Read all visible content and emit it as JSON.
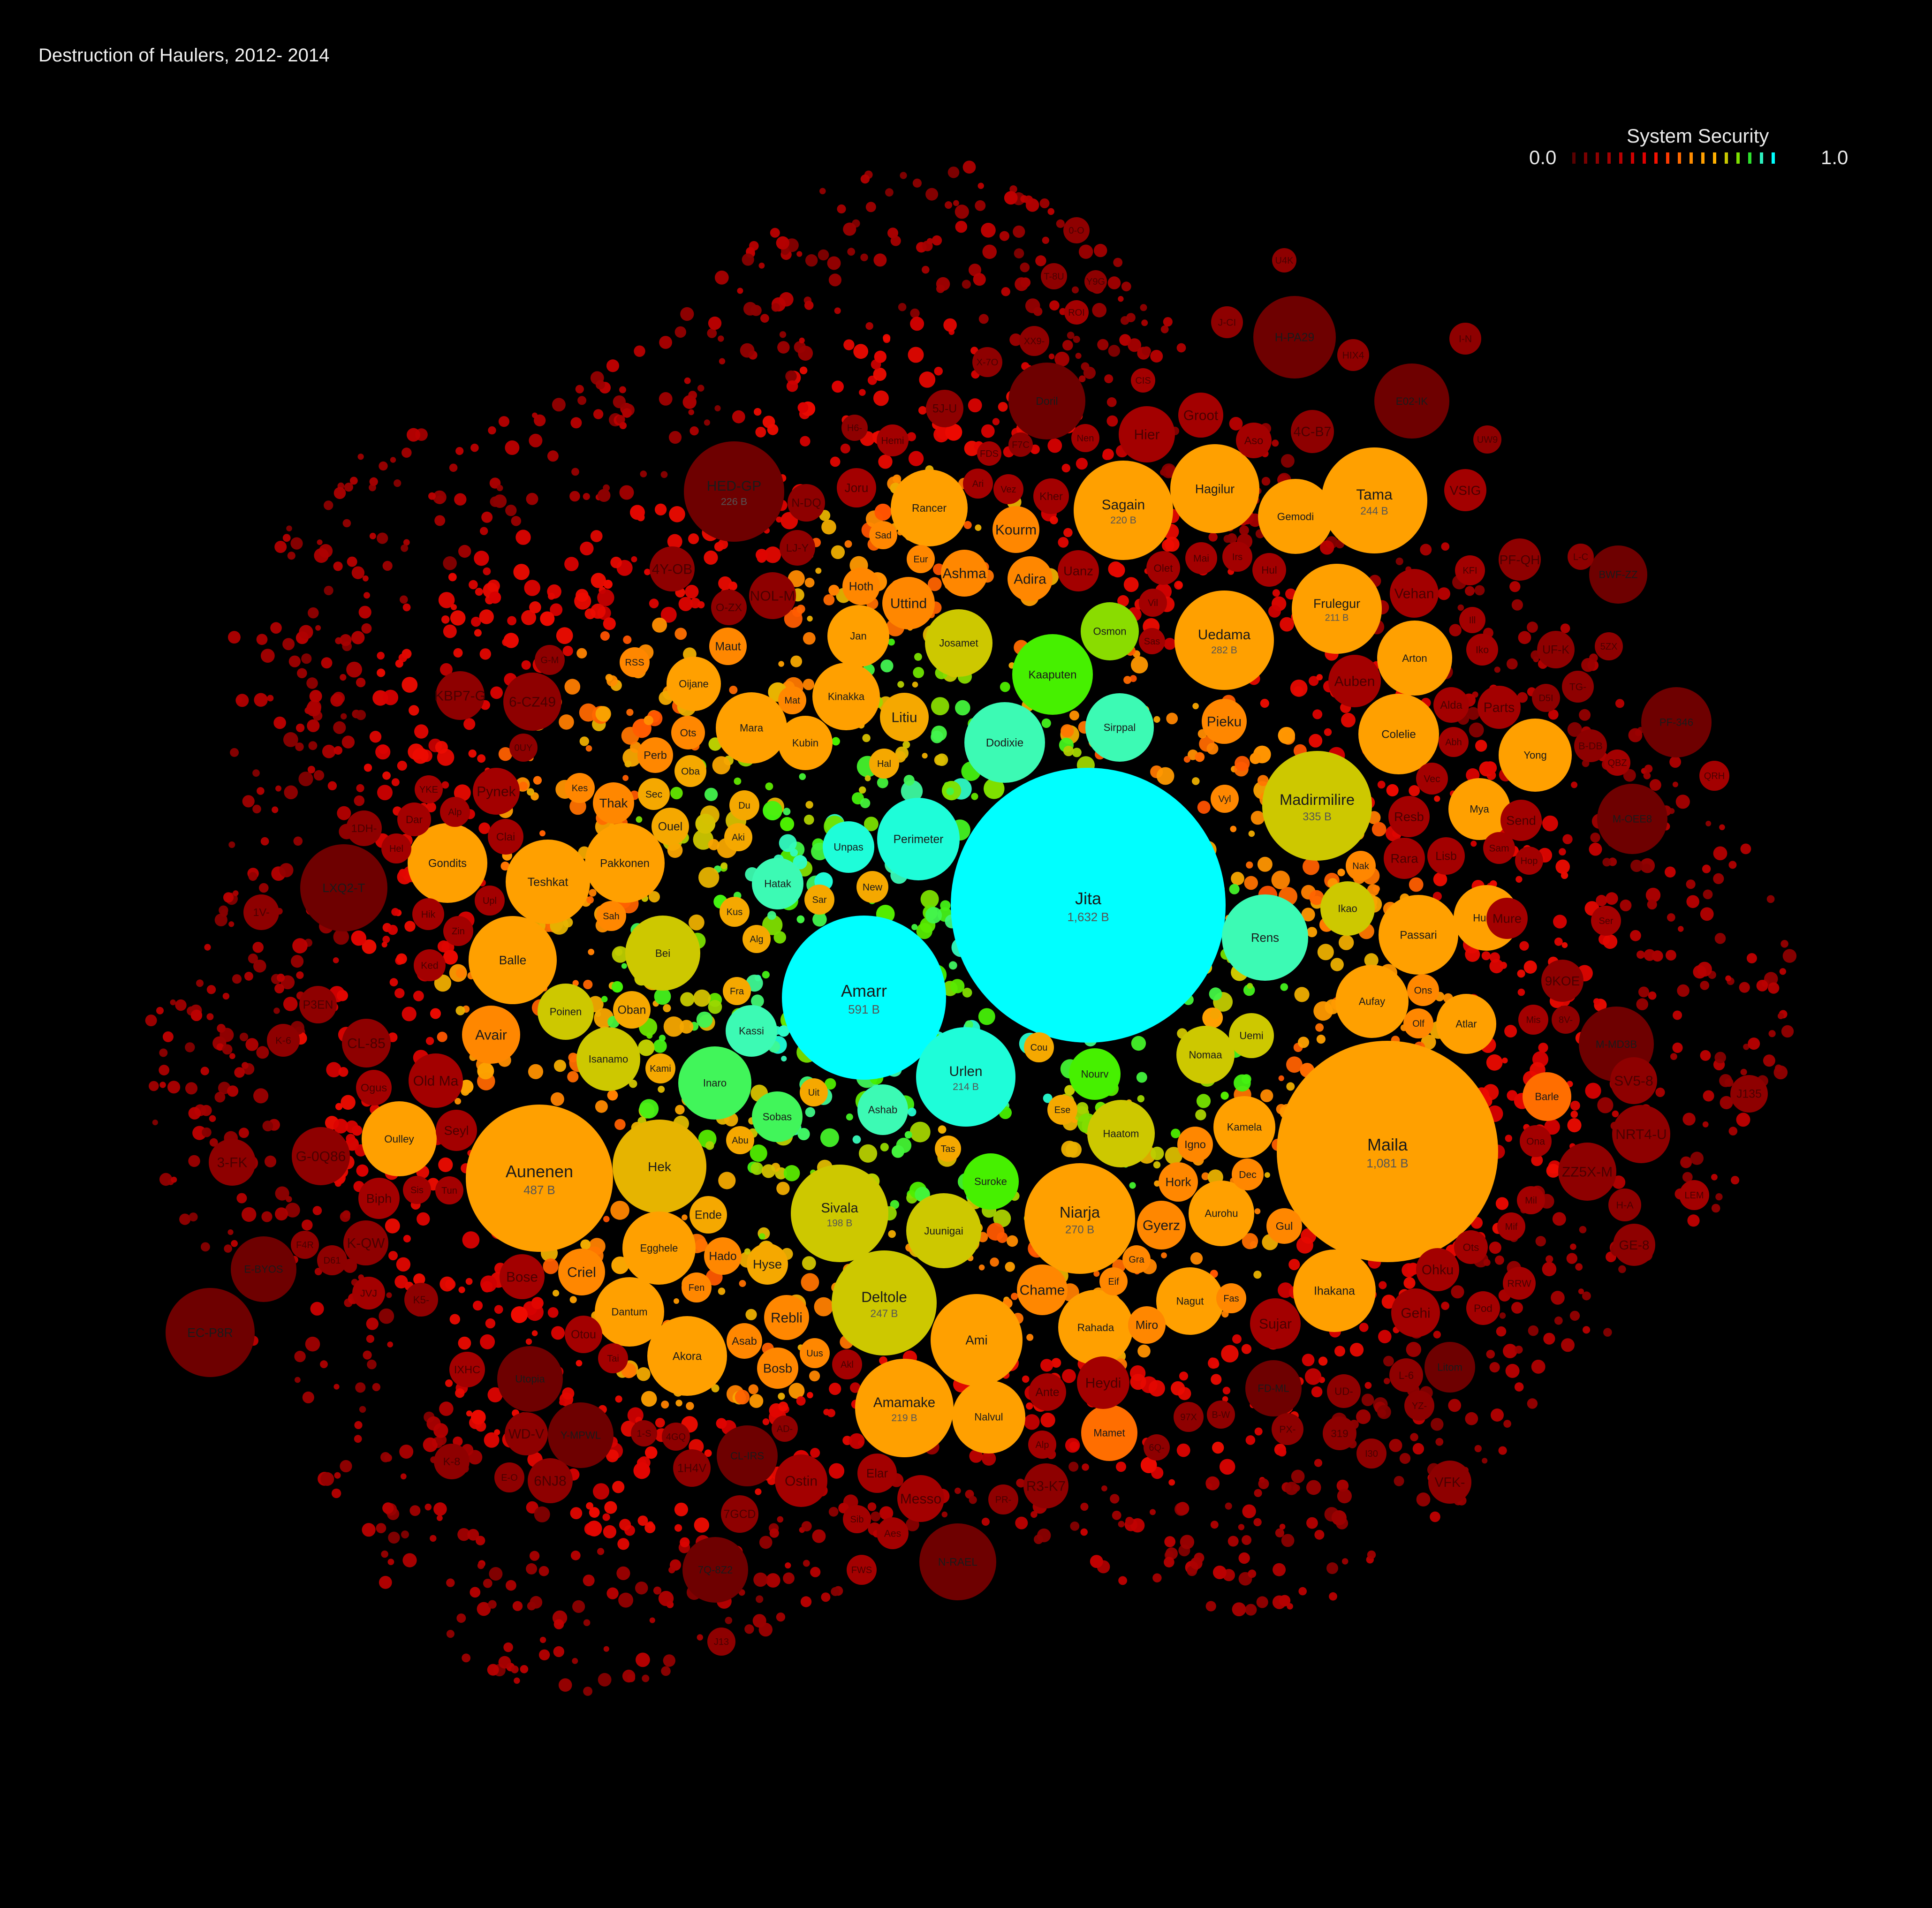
{
  "title": "Destruction of Haulers, 2012- 2014",
  "legend": {
    "title": "System Security",
    "min_label": "0.0",
    "max_label": "1.0",
    "swatches": [
      "#5a0000",
      "#7a0000",
      "#8f0000",
      "#a30000",
      "#b80000",
      "#cc0000",
      "#e00000",
      "#f51000",
      "#ff3a00",
      "#ff6a00",
      "#ff8c00",
      "#ffa000",
      "#ffb000",
      "#c8c800",
      "#7fe000",
      "#2ee02e",
      "#2ef0c0",
      "#00ffff"
    ]
  },
  "chart_data": {
    "type": "bubble",
    "title": "Destruction of Haulers, 2012- 2014",
    "size_metric": "destroyed value (ISK)",
    "color_metric": "System Security (0.0 - 1.0)",
    "systems": [
      {
        "name": "Jita",
        "value_label": "1,632 B",
        "value_b": 1632,
        "security": 1.0
      },
      {
        "name": "Maila",
        "value_label": "1,081 B",
        "value_b": 1081,
        "security": 0.6
      },
      {
        "name": "Amarr",
        "value_label": "591 B",
        "value_b": 591,
        "security": 1.0
      },
      {
        "name": "Aunenen",
        "value_label": "487 B",
        "value_b": 487,
        "security": 0.6
      },
      {
        "name": "Madirmilire",
        "value_label": "335 B",
        "value_b": 335,
        "security": 0.7
      },
      {
        "name": "Uedama",
        "value_label": "282 B",
        "value_b": 282,
        "security": 0.6
      },
      {
        "name": "Niarja",
        "value_label": "270 B",
        "value_b": 270,
        "security": 0.6
      },
      {
        "name": "Deltole",
        "value_label": "247 B",
        "value_b": 247,
        "security": 0.7
      },
      {
        "name": "Tama",
        "value_label": "244 B",
        "value_b": 244,
        "security": 0.6
      },
      {
        "name": "HED-GP",
        "value_label": "226 B",
        "value_b": 226,
        "security": 0.0
      },
      {
        "name": "Sagain",
        "value_label": "220 B",
        "value_b": 220,
        "security": 0.6
      },
      {
        "name": "Amamake",
        "value_label": "219 B",
        "value_b": 219,
        "security": 0.6
      },
      {
        "name": "Urlen",
        "value_label": "214 B",
        "value_b": 214,
        "security": 0.95
      },
      {
        "name": "Frulegur",
        "value_label": "211 B",
        "value_b": 211,
        "security": 0.6
      },
      {
        "name": "Sivala",
        "value_label": "198 B",
        "value_b": 198,
        "security": 0.7
      },
      {
        "name": "Perimeter",
        "security": 0.95
      },
      {
        "name": "Rens",
        "security": 0.9
      },
      {
        "name": "Dodixie",
        "security": 0.9
      },
      {
        "name": "Kaaputen",
        "security": 0.8
      },
      {
        "name": "Sirppal",
        "security": 0.9
      },
      {
        "name": "Josamet",
        "security": 0.7
      },
      {
        "name": "Osmon",
        "security": 0.75
      },
      {
        "name": "Inaro",
        "security": 0.85
      },
      {
        "name": "Isanamo",
        "security": 0.7
      },
      {
        "name": "Nomaa",
        "security": 0.7
      },
      {
        "name": "Juunigai",
        "security": 0.7
      },
      {
        "name": "Suroke",
        "security": 0.8
      },
      {
        "name": "Haatom",
        "security": 0.7
      },
      {
        "name": "Ikao",
        "security": 0.7
      },
      {
        "name": "Poinen",
        "security": 0.7
      },
      {
        "name": "Bei",
        "security": 0.7
      },
      {
        "name": "Hek",
        "security": 0.65
      },
      {
        "name": "Kassi",
        "security": 0.9
      },
      {
        "name": "Ashab",
        "security": 0.9
      },
      {
        "name": "Sobas",
        "security": 0.85
      },
      {
        "name": "Hatak",
        "security": 0.9
      },
      {
        "name": "Unpas",
        "security": 0.95
      },
      {
        "name": "Nourv",
        "security": 0.8
      },
      {
        "name": "Uemi",
        "security": 0.7
      },
      {
        "name": "Aufay",
        "security": 0.6
      },
      {
        "name": "Passari",
        "security": 0.6
      },
      {
        "name": "Huola",
        "security": 0.6
      },
      {
        "name": "Yong",
        "security": 0.6
      },
      {
        "name": "Colelie",
        "security": 0.6
      },
      {
        "name": "Arton",
        "security": 0.6
      },
      {
        "name": "Ihakana",
        "security": 0.6
      },
      {
        "name": "Akora",
        "security": 0.6
      },
      {
        "name": "Ami",
        "security": 0.6
      },
      {
        "name": "Egghele",
        "security": 0.6
      },
      {
        "name": "Dantum",
        "security": 0.6
      },
      {
        "name": "Balle",
        "security": 0.6
      },
      {
        "name": "Teshkat",
        "security": 0.6
      },
      {
        "name": "Pakkonen",
        "security": 0.6
      },
      {
        "name": "Gondits",
        "security": 0.6
      },
      {
        "name": "Oulley",
        "security": 0.6
      },
      {
        "name": "Hagilur",
        "security": 0.6
      },
      {
        "name": "Gemodi",
        "security": 0.6
      },
      {
        "name": "Rancer",
        "security": 0.6
      },
      {
        "name": "Mara",
        "security": 0.6
      },
      {
        "name": "Kinakka",
        "security": 0.6
      },
      {
        "name": "Jan",
        "security": 0.6
      },
      {
        "name": "Kubin",
        "security": 0.6
      },
      {
        "name": "Oijane",
        "security": 0.6
      },
      {
        "name": "Atlar",
        "security": 0.6
      },
      {
        "name": "Mya",
        "security": 0.6
      },
      {
        "name": "Nalvul",
        "security": 0.6
      },
      {
        "name": "Rahada",
        "security": 0.6
      },
      {
        "name": "Nagut",
        "security": 0.6
      },
      {
        "name": "Aurohu",
        "security": 0.6
      },
      {
        "name": "Kamela",
        "security": 0.6
      },
      {
        "name": "Barle",
        "security": 0.5
      },
      {
        "name": "Mamet",
        "security": 0.5
      },
      {
        "name": "Doril",
        "security": 0.0
      },
      {
        "name": "H-PA29",
        "security": 0.0
      },
      {
        "name": "E02-IK",
        "security": 0.0
      },
      {
        "name": "LXQ2-T",
        "security": 0.0
      },
      {
        "name": "EC-P8R",
        "security": 0.0
      },
      {
        "name": "M-MD3B",
        "security": 0.0
      },
      {
        "name": "M-OEE8",
        "security": 0.0
      },
      {
        "name": "PF-346",
        "security": 0.0
      },
      {
        "name": "BWF-ZZ",
        "security": 0.0
      },
      {
        "name": "N-RAEL",
        "security": 0.0
      },
      {
        "name": "7Q-8Z2",
        "security": 0.0
      },
      {
        "name": "Utopia",
        "security": 0.0
      },
      {
        "name": "Y-MPWL",
        "security": 0.0
      },
      {
        "name": "CL-IRS",
        "security": 0.0
      },
      {
        "name": "E-BYOS",
        "security": 0.0
      },
      {
        "name": "FD-ML",
        "security": 0.0
      },
      {
        "name": "Litom",
        "security": 0.0
      }
    ]
  },
  "labels": [
    {
      "t": "0-O"
    },
    {
      "t": "T-8U"
    },
    {
      "t": "Y9G"
    },
    {
      "t": "ROI"
    },
    {
      "t": "U4K"
    },
    {
      "t": "J-CI"
    },
    {
      "t": "H-PA29"
    },
    {
      "t": "HIX4"
    },
    {
      "t": "I-N"
    },
    {
      "t": "XX9-"
    },
    {
      "t": "X-7O"
    },
    {
      "t": "CIS"
    },
    {
      "t": "5J-U"
    },
    {
      "t": "Doril"
    },
    {
      "t": "E02-IK"
    },
    {
      "t": "H6-"
    },
    {
      "t": "Hemi"
    },
    {
      "t": "FDS"
    },
    {
      "t": "F7C"
    },
    {
      "t": "4C-B7"
    },
    {
      "t": "UW9"
    },
    {
      "t": "Joru"
    },
    {
      "t": "N-DQ"
    },
    {
      "t": "VSIG"
    },
    {
      "t": "LJ-Y"
    },
    {
      "t": "4Y-OB"
    },
    {
      "t": "NOL-M"
    },
    {
      "t": "O-ZX"
    },
    {
      "t": "PF-QH"
    },
    {
      "t": "L-C"
    },
    {
      "t": "KFI"
    },
    {
      "t": "BWF-ZZ"
    },
    {
      "t": "RSS"
    },
    {
      "t": "G-M"
    },
    {
      "t": "UF-K"
    },
    {
      "t": "5ZX"
    },
    {
      "t": "KBP7-G"
    },
    {
      "t": "6-CZ49"
    },
    {
      "t": "D5I"
    },
    {
      "t": "TG-"
    },
    {
      "t": "0UY"
    },
    {
      "t": "PF-346"
    },
    {
      "t": "B-DB"
    },
    {
      "t": "QBZ"
    },
    {
      "t": "QRH"
    },
    {
      "t": "1DH-"
    },
    {
      "t": "M-OEE8"
    },
    {
      "t": "LXQ2-T"
    },
    {
      "t": "1V-"
    },
    {
      "t": "Hop"
    },
    {
      "t": "Ser"
    },
    {
      "t": "P3EN"
    },
    {
      "t": "9KOE"
    },
    {
      "t": "K-6"
    },
    {
      "t": "CL-85"
    },
    {
      "t": "Mis"
    },
    {
      "t": "8V-"
    },
    {
      "t": "M-MD3B"
    },
    {
      "t": "SV5-8"
    },
    {
      "t": "J135"
    },
    {
      "t": "3-FK"
    },
    {
      "t": "G-0Q86"
    },
    {
      "t": "NRT4-U"
    },
    {
      "t": "ZZ5X-M"
    },
    {
      "t": "H-A"
    },
    {
      "t": "LEM"
    },
    {
      "t": "F4R"
    },
    {
      "t": "K-QW"
    },
    {
      "t": "E-BYOS"
    },
    {
      "t": "D61"
    },
    {
      "t": "GE-8"
    },
    {
      "t": "JVJ"
    },
    {
      "t": "K5-"
    },
    {
      "t": "EC-P8R"
    },
    {
      "t": "RRW"
    },
    {
      "t": "IXHC"
    },
    {
      "t": "Utopia"
    },
    {
      "t": "FD-ML"
    },
    {
      "t": "L-6"
    },
    {
      "t": "Litom"
    },
    {
      "t": "UD-"
    },
    {
      "t": "YZ-"
    },
    {
      "t": "WD-V"
    },
    {
      "t": "Y-MPWL"
    },
    {
      "t": "1-S"
    },
    {
      "t": "4GQ"
    },
    {
      "t": "AD-"
    },
    {
      "t": "97X"
    },
    {
      "t": "B-W"
    },
    {
      "t": "PX-"
    },
    {
      "t": "319"
    },
    {
      "t": "K-8"
    },
    {
      "t": "1H4V"
    },
    {
      "t": "CL-IRS"
    },
    {
      "t": "6Q-"
    },
    {
      "t": "I30"
    },
    {
      "t": "E-O"
    },
    {
      "t": "6NJ8"
    },
    {
      "t": "VFK-"
    },
    {
      "t": "7GCD"
    },
    {
      "t": "R3-K7"
    },
    {
      "t": "PR-"
    },
    {
      "t": "7Q-8Z2"
    },
    {
      "t": "N-RAEL"
    },
    {
      "t": "FWS"
    },
    {
      "t": "J13"
    },
    {
      "t": "Groot"
    },
    {
      "t": "Hier"
    },
    {
      "t": "Aso"
    },
    {
      "t": "Nen"
    },
    {
      "t": "Ari"
    },
    {
      "t": "Vez"
    },
    {
      "t": "Kher"
    },
    {
      "t": "Gemodi"
    },
    {
      "t": "Sad"
    },
    {
      "t": "Kourm"
    },
    {
      "t": "Eur"
    },
    {
      "t": "Ashma"
    },
    {
      "t": "Adira"
    },
    {
      "t": "Uanz"
    },
    {
      "t": "Olet"
    },
    {
      "t": "Mai"
    },
    {
      "t": "Irs"
    },
    {
      "t": "Hul"
    },
    {
      "t": "Vehan"
    },
    {
      "t": "Hoth"
    },
    {
      "t": "Uttind"
    },
    {
      "t": "Vil"
    },
    {
      "t": "Ill"
    },
    {
      "t": "Maut"
    },
    {
      "t": "Sas"
    },
    {
      "t": "Auben"
    },
    {
      "t": "Iko"
    },
    {
      "t": "Litiu"
    },
    {
      "t": "Mat"
    },
    {
      "t": "Ots"
    },
    {
      "t": "Alda"
    },
    {
      "t": "Parts"
    },
    {
      "t": "Pieku"
    },
    {
      "t": "Abh"
    },
    {
      "t": "Perb"
    },
    {
      "t": "Kes"
    },
    {
      "t": "Hal"
    },
    {
      "t": "Oba"
    },
    {
      "t": "Vec"
    },
    {
      "t": "Sec"
    },
    {
      "t": "Thak"
    },
    {
      "t": "Du"
    },
    {
      "t": "Vyl"
    },
    {
      "t": "Resb"
    },
    {
      "t": "Send"
    },
    {
      "t": "Ouel"
    },
    {
      "t": "Dar"
    },
    {
      "t": "Alp"
    },
    {
      "t": "Clai"
    },
    {
      "t": "Aki"
    },
    {
      "t": "Sam"
    },
    {
      "t": "Rara"
    },
    {
      "t": "Lisb"
    },
    {
      "t": "Nak"
    },
    {
      "t": "YKE"
    },
    {
      "t": "Pynek"
    },
    {
      "t": "Hel"
    },
    {
      "t": "New"
    },
    {
      "t": "Upl"
    },
    {
      "t": "Sar"
    },
    {
      "t": "Kus"
    },
    {
      "t": "Sah"
    },
    {
      "t": "Hik"
    },
    {
      "t": "Zin"
    },
    {
      "t": "Alg"
    },
    {
      "t": "Mure"
    },
    {
      "t": "Ked"
    },
    {
      "t": "Fra"
    },
    {
      "t": "Oban"
    },
    {
      "t": "Ons"
    },
    {
      "t": "Avair"
    },
    {
      "t": "Olf"
    },
    {
      "t": "Cou"
    },
    {
      "t": "Kami"
    },
    {
      "t": "Old Ma"
    },
    {
      "t": "Ogus"
    },
    {
      "t": "Uit"
    },
    {
      "t": "Ese"
    },
    {
      "t": "Seyl"
    },
    {
      "t": "Abu"
    },
    {
      "t": "Tas"
    },
    {
      "t": "Igno"
    },
    {
      "t": "Ona"
    },
    {
      "t": "Dec"
    },
    {
      "t": "Sis"
    },
    {
      "t": "Tun"
    },
    {
      "t": "Biph"
    },
    {
      "t": "Hork"
    },
    {
      "t": "Ende"
    },
    {
      "t": "Mil"
    },
    {
      "t": "Gyerz"
    },
    {
      "t": "Gul"
    },
    {
      "t": "Mif"
    },
    {
      "t": "Hado"
    },
    {
      "t": "Hyse"
    },
    {
      "t": "Gra"
    },
    {
      "t": "Bose"
    },
    {
      "t": "Criel"
    },
    {
      "t": "Ots"
    },
    {
      "t": "Ohku"
    },
    {
      "t": "Eif"
    },
    {
      "t": "Fen"
    },
    {
      "t": "Chame"
    },
    {
      "t": "Fas"
    },
    {
      "t": "Gehi"
    },
    {
      "t": "Pod"
    },
    {
      "t": "Rebli"
    },
    {
      "t": "Sujar"
    },
    {
      "t": "Miro"
    },
    {
      "t": "Otou"
    },
    {
      "t": "Asab"
    },
    {
      "t": "Uus"
    },
    {
      "t": "Tai"
    },
    {
      "t": "Bosb"
    },
    {
      "t": "Akl"
    },
    {
      "t": "Heydi"
    },
    {
      "t": "Ante"
    },
    {
      "t": "Alp"
    },
    {
      "t": "Elar"
    },
    {
      "t": "Ostin"
    },
    {
      "t": "Messo"
    },
    {
      "t": "Sib"
    },
    {
      "t": "Aes"
    }
  ]
}
